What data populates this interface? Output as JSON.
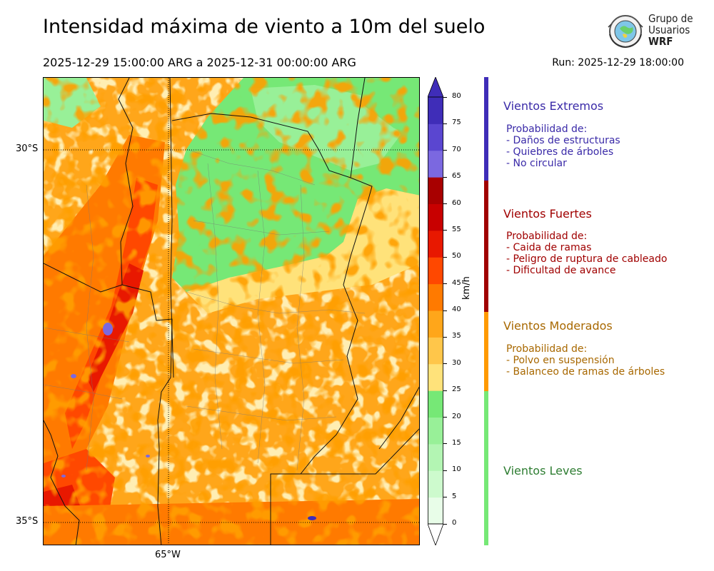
{
  "title": "Intensidad máxima de viento a 10m del suelo",
  "subtitle": "2025-12-29 15:00:00 ARG  a  2025-12-31 00:00:00 ARG",
  "run": "Run: 2025-12-29 18:00:00",
  "logo": {
    "line1": "Grupo de",
    "line2": "Usuarios",
    "line3": "WRF",
    "icon": "globe-seal-icon"
  },
  "map": {
    "lat_labels": [
      "30°S",
      "35°S"
    ],
    "lon_labels": [
      "65°W"
    ]
  },
  "colorbar": {
    "unit": "km/h",
    "ticks": [
      "0",
      "5",
      "10",
      "15",
      "20",
      "25",
      "30",
      "35",
      "40",
      "45",
      "50",
      "55",
      "60",
      "65",
      "70",
      "75",
      "80"
    ],
    "colors": [
      "#e8fde8",
      "#cdfacd",
      "#b3f5b3",
      "#98f098",
      "#76e876",
      "#ffe27a",
      "#ffc64a",
      "#ffa61a",
      "#ff7a00",
      "#ff4800",
      "#e81800",
      "#c80000",
      "#a80000",
      "#7b68e0",
      "#5a46d0",
      "#3f2db8"
    ]
  },
  "legend": [
    {
      "title": "Vientos Extremos",
      "color": "#3f2db8",
      "desc": "Probabilidad de:\n- Daños de estructuras\n- Quiebres de árboles\n- No circular"
    },
    {
      "title": "Vientos Fuertes",
      "color": "#a00000",
      "desc": "Probabilidad de:\n- Caida de ramas\n- Peligro de ruptura de cableado\n- Dificultad de avance"
    },
    {
      "title": "Vientos Moderados",
      "color": "#ff9a00",
      "desc": "Probabilidad de:\n- Polvo en suspensión\n- Balanceo de ramas de árboles"
    },
    {
      "title": "Vientos Leves",
      "color": "#76e876",
      "desc": ""
    }
  ]
}
